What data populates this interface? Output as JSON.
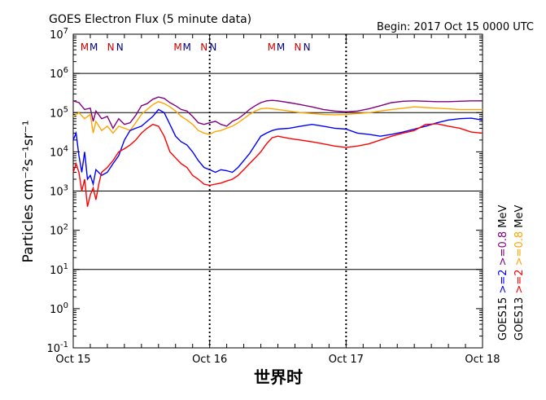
{
  "header": {
    "title": "GOES Electron Flux (5 minute data)",
    "begin": "Begin: 2017 Oct 15 0000 UTC"
  },
  "chart_data": {
    "type": "line",
    "title": "GOES Electron Flux (5 minute data)",
    "xlabel": "世界时",
    "ylabel": "Particles cm⁻²s⁻¹sr⁻¹",
    "y_scale": "log",
    "ylim": [
      0.1,
      10000000
    ],
    "y_ticks": [
      {
        "base": "10",
        "exp": "7"
      },
      {
        "base": "10",
        "exp": "6"
      },
      {
        "base": "10",
        "exp": "5"
      },
      {
        "base": "10",
        "exp": "4"
      },
      {
        "base": "10",
        "exp": "3"
      },
      {
        "base": "10",
        "exp": "2"
      },
      {
        "base": "10",
        "exp": "1"
      },
      {
        "base": "10",
        "exp": "0"
      },
      {
        "base": "10",
        "exp": "-1"
      }
    ],
    "x_ticks": [
      "Oct 15",
      "Oct 16",
      "Oct 17",
      "Oct 18"
    ],
    "xlim_hours": [
      0,
      72
    ],
    "threshold": 1000,
    "gridlines": [
      10,
      1000,
      100000,
      1000000
    ],
    "mn_markers": [
      {
        "label": "M",
        "hour": 2.0,
        "color": "#cc0000"
      },
      {
        "label": "M",
        "hour": 3.6,
        "color": "#000080"
      },
      {
        "label": "N",
        "hour": 6.6,
        "color": "#cc0000"
      },
      {
        "label": "N",
        "hour": 8.2,
        "color": "#000080"
      },
      {
        "label": "M",
        "hour": 18.4,
        "color": "#cc0000"
      },
      {
        "label": "M",
        "hour": 20.0,
        "color": "#000080"
      },
      {
        "label": "N",
        "hour": 23.0,
        "color": "#cc0000"
      },
      {
        "label": "N",
        "hour": 24.6,
        "color": "#000080"
      },
      {
        "label": "M",
        "hour": 34.9,
        "color": "#cc0000"
      },
      {
        "label": "M",
        "hour": 36.5,
        "color": "#000080"
      },
      {
        "label": "N",
        "hour": 39.5,
        "color": "#cc0000"
      },
      {
        "label": "N",
        "hour": 41.1,
        "color": "#000080"
      }
    ],
    "legend": {
      "placement": "right",
      "columns": [
        {
          "items": [
            {
              "text": "GOES15",
              "color": "#000000"
            },
            {
              "text": ">=2",
              "color": "#0000ff"
            },
            {
              "text": ">=0.8",
              "color": "#800080"
            },
            {
              "text": "MeV",
              "color": "#000000"
            }
          ]
        },
        {
          "items": [
            {
              "text": "GOES13",
              "color": "#000000"
            },
            {
              "text": ">=2",
              "color": "#ff0000"
            },
            {
              "text": ">=0.8",
              "color": "#ffa500"
            },
            {
              "text": "MeV",
              "color": "#000000"
            }
          ]
        }
      ]
    },
    "series": [
      {
        "name": "GOES15 >=0.8 MeV",
        "color": "#800080",
        "points": [
          [
            0,
            200000
          ],
          [
            1,
            180000
          ],
          [
            2,
            120000
          ],
          [
            3,
            130000
          ],
          [
            3.5,
            60000
          ],
          [
            4,
            110000
          ],
          [
            5,
            70000
          ],
          [
            6,
            80000
          ],
          [
            7,
            40000
          ],
          [
            8,
            70000
          ],
          [
            9,
            50000
          ],
          [
            10,
            55000
          ],
          [
            11,
            85000
          ],
          [
            12,
            150000
          ],
          [
            13,
            170000
          ],
          [
            14,
            220000
          ],
          [
            15,
            250000
          ],
          [
            16,
            230000
          ],
          [
            17,
            180000
          ],
          [
            18,
            150000
          ],
          [
            19,
            120000
          ],
          [
            20,
            110000
          ],
          [
            21,
            80000
          ],
          [
            22,
            55000
          ],
          [
            23,
            50000
          ],
          [
            24,
            55000
          ],
          [
            25,
            60000
          ],
          [
            26,
            50000
          ],
          [
            27,
            45000
          ],
          [
            28,
            60000
          ],
          [
            29,
            70000
          ],
          [
            30,
            90000
          ],
          [
            31,
            120000
          ],
          [
            32,
            150000
          ],
          [
            33,
            180000
          ],
          [
            34,
            200000
          ],
          [
            35,
            205000
          ],
          [
            36,
            200000
          ],
          [
            38,
            180000
          ],
          [
            40,
            160000
          ],
          [
            42,
            140000
          ],
          [
            44,
            120000
          ],
          [
            46,
            110000
          ],
          [
            48,
            105000
          ],
          [
            50,
            110000
          ],
          [
            52,
            125000
          ],
          [
            54,
            150000
          ],
          [
            56,
            180000
          ],
          [
            58,
            195000
          ],
          [
            60,
            200000
          ],
          [
            62,
            195000
          ],
          [
            64,
            190000
          ],
          [
            66,
            190000
          ],
          [
            68,
            195000
          ],
          [
            70,
            200000
          ],
          [
            72,
            200000
          ]
        ]
      },
      {
        "name": "GOES13 >=0.8 MeV",
        "color": "#ffa500",
        "points": [
          [
            0,
            80000
          ],
          [
            1,
            100000
          ],
          [
            2,
            70000
          ],
          [
            3,
            90000
          ],
          [
            3.5,
            30000
          ],
          [
            4,
            60000
          ],
          [
            5,
            35000
          ],
          [
            6,
            45000
          ],
          [
            7,
            30000
          ],
          [
            8,
            45000
          ],
          [
            9,
            40000
          ],
          [
            10,
            35000
          ],
          [
            11,
            55000
          ],
          [
            12,
            90000
          ],
          [
            13,
            120000
          ],
          [
            14,
            160000
          ],
          [
            15,
            190000
          ],
          [
            16,
            170000
          ],
          [
            17,
            140000
          ],
          [
            18,
            110000
          ],
          [
            19,
            80000
          ],
          [
            20,
            65000
          ],
          [
            21,
            50000
          ],
          [
            22,
            35000
          ],
          [
            23,
            30000
          ],
          [
            24,
            28000
          ],
          [
            25,
            33000
          ],
          [
            26,
            35000
          ],
          [
            27,
            40000
          ],
          [
            28,
            45000
          ],
          [
            29,
            55000
          ],
          [
            30,
            70000
          ],
          [
            31,
            90000
          ],
          [
            32,
            110000
          ],
          [
            33,
            125000
          ],
          [
            34,
            130000
          ],
          [
            35,
            125000
          ],
          [
            36,
            120000
          ],
          [
            38,
            110000
          ],
          [
            40,
            100000
          ],
          [
            42,
            95000
          ],
          [
            44,
            90000
          ],
          [
            46,
            88000
          ],
          [
            48,
            90000
          ],
          [
            50,
            95000
          ],
          [
            52,
            100000
          ],
          [
            54,
            110000
          ],
          [
            56,
            120000
          ],
          [
            58,
            130000
          ],
          [
            60,
            140000
          ],
          [
            62,
            135000
          ],
          [
            64,
            130000
          ],
          [
            66,
            125000
          ],
          [
            68,
            120000
          ],
          [
            70,
            120000
          ],
          [
            72,
            120000
          ]
        ]
      },
      {
        "name": "GOES15 >=2 MeV",
        "color": "#0000ff",
        "points": [
          [
            0,
            20000
          ],
          [
            0.5,
            30000
          ],
          [
            1,
            8000
          ],
          [
            1.5,
            3000
          ],
          [
            2,
            10000
          ],
          [
            2.5,
            2000
          ],
          [
            3,
            2500
          ],
          [
            3.5,
            1500
          ],
          [
            4,
            3500
          ],
          [
            5,
            2500
          ],
          [
            6,
            3000
          ],
          [
            7,
            5000
          ],
          [
            8,
            8000
          ],
          [
            9,
            20000
          ],
          [
            10,
            35000
          ],
          [
            11,
            40000
          ],
          [
            12,
            45000
          ],
          [
            13,
            60000
          ],
          [
            14,
            80000
          ],
          [
            15,
            120000
          ],
          [
            16,
            100000
          ],
          [
            17,
            50000
          ],
          [
            18,
            25000
          ],
          [
            19,
            18000
          ],
          [
            20,
            15000
          ],
          [
            21,
            10000
          ],
          [
            22,
            6000
          ],
          [
            23,
            4000
          ],
          [
            24,
            3500
          ],
          [
            25,
            3000
          ],
          [
            26,
            3500
          ],
          [
            27,
            3300
          ],
          [
            28,
            3000
          ],
          [
            29,
            4000
          ],
          [
            30,
            6000
          ],
          [
            31,
            9000
          ],
          [
            32,
            15000
          ],
          [
            33,
            25000
          ],
          [
            34,
            30000
          ],
          [
            35,
            35000
          ],
          [
            36,
            38000
          ],
          [
            38,
            40000
          ],
          [
            40,
            45000
          ],
          [
            42,
            50000
          ],
          [
            44,
            45000
          ],
          [
            46,
            40000
          ],
          [
            48,
            38000
          ],
          [
            50,
            30000
          ],
          [
            52,
            28000
          ],
          [
            54,
            25000
          ],
          [
            56,
            28000
          ],
          [
            58,
            32000
          ],
          [
            60,
            38000
          ],
          [
            62,
            45000
          ],
          [
            64,
            55000
          ],
          [
            66,
            65000
          ],
          [
            68,
            70000
          ],
          [
            70,
            72000
          ],
          [
            72,
            65000
          ]
        ]
      },
      {
        "name": "GOES13 >=2 MeV",
        "color": "#ff0000",
        "points": [
          [
            0,
            3000
          ],
          [
            0.5,
            5000
          ],
          [
            1,
            3000
          ],
          [
            1.5,
            1000
          ],
          [
            2,
            2000
          ],
          [
            2.5,
            400
          ],
          [
            3,
            800
          ],
          [
            3.5,
            1200
          ],
          [
            4,
            600
          ],
          [
            4.5,
            1500
          ],
          [
            5,
            3000
          ],
          [
            6,
            4000
          ],
          [
            7,
            6000
          ],
          [
            8,
            10000
          ],
          [
            9,
            12000
          ],
          [
            10,
            15000
          ],
          [
            11,
            20000
          ],
          [
            12,
            30000
          ],
          [
            13,
            40000
          ],
          [
            14,
            50000
          ],
          [
            15,
            45000
          ],
          [
            16,
            25000
          ],
          [
            17,
            10000
          ],
          [
            18,
            7000
          ],
          [
            19,
            5000
          ],
          [
            20,
            4000
          ],
          [
            21,
            2500
          ],
          [
            22,
            2000
          ],
          [
            23,
            1500
          ],
          [
            24,
            1400
          ],
          [
            25,
            1500
          ],
          [
            26,
            1600
          ],
          [
            27,
            1800
          ],
          [
            28,
            2000
          ],
          [
            29,
            2500
          ],
          [
            30,
            3500
          ],
          [
            31,
            5000
          ],
          [
            32,
            7000
          ],
          [
            33,
            10000
          ],
          [
            34,
            16000
          ],
          [
            35,
            23000
          ],
          [
            36,
            25000
          ],
          [
            38,
            22000
          ],
          [
            40,
            20000
          ],
          [
            42,
            18000
          ],
          [
            44,
            16000
          ],
          [
            46,
            14000
          ],
          [
            48,
            13000
          ],
          [
            50,
            14000
          ],
          [
            52,
            16000
          ],
          [
            54,
            20000
          ],
          [
            56,
            25000
          ],
          [
            58,
            30000
          ],
          [
            60,
            35000
          ],
          [
            62,
            50000
          ],
          [
            64,
            52000
          ],
          [
            66,
            45000
          ],
          [
            68,
            40000
          ],
          [
            70,
            32000
          ],
          [
            72,
            30000
          ]
        ]
      }
    ]
  }
}
